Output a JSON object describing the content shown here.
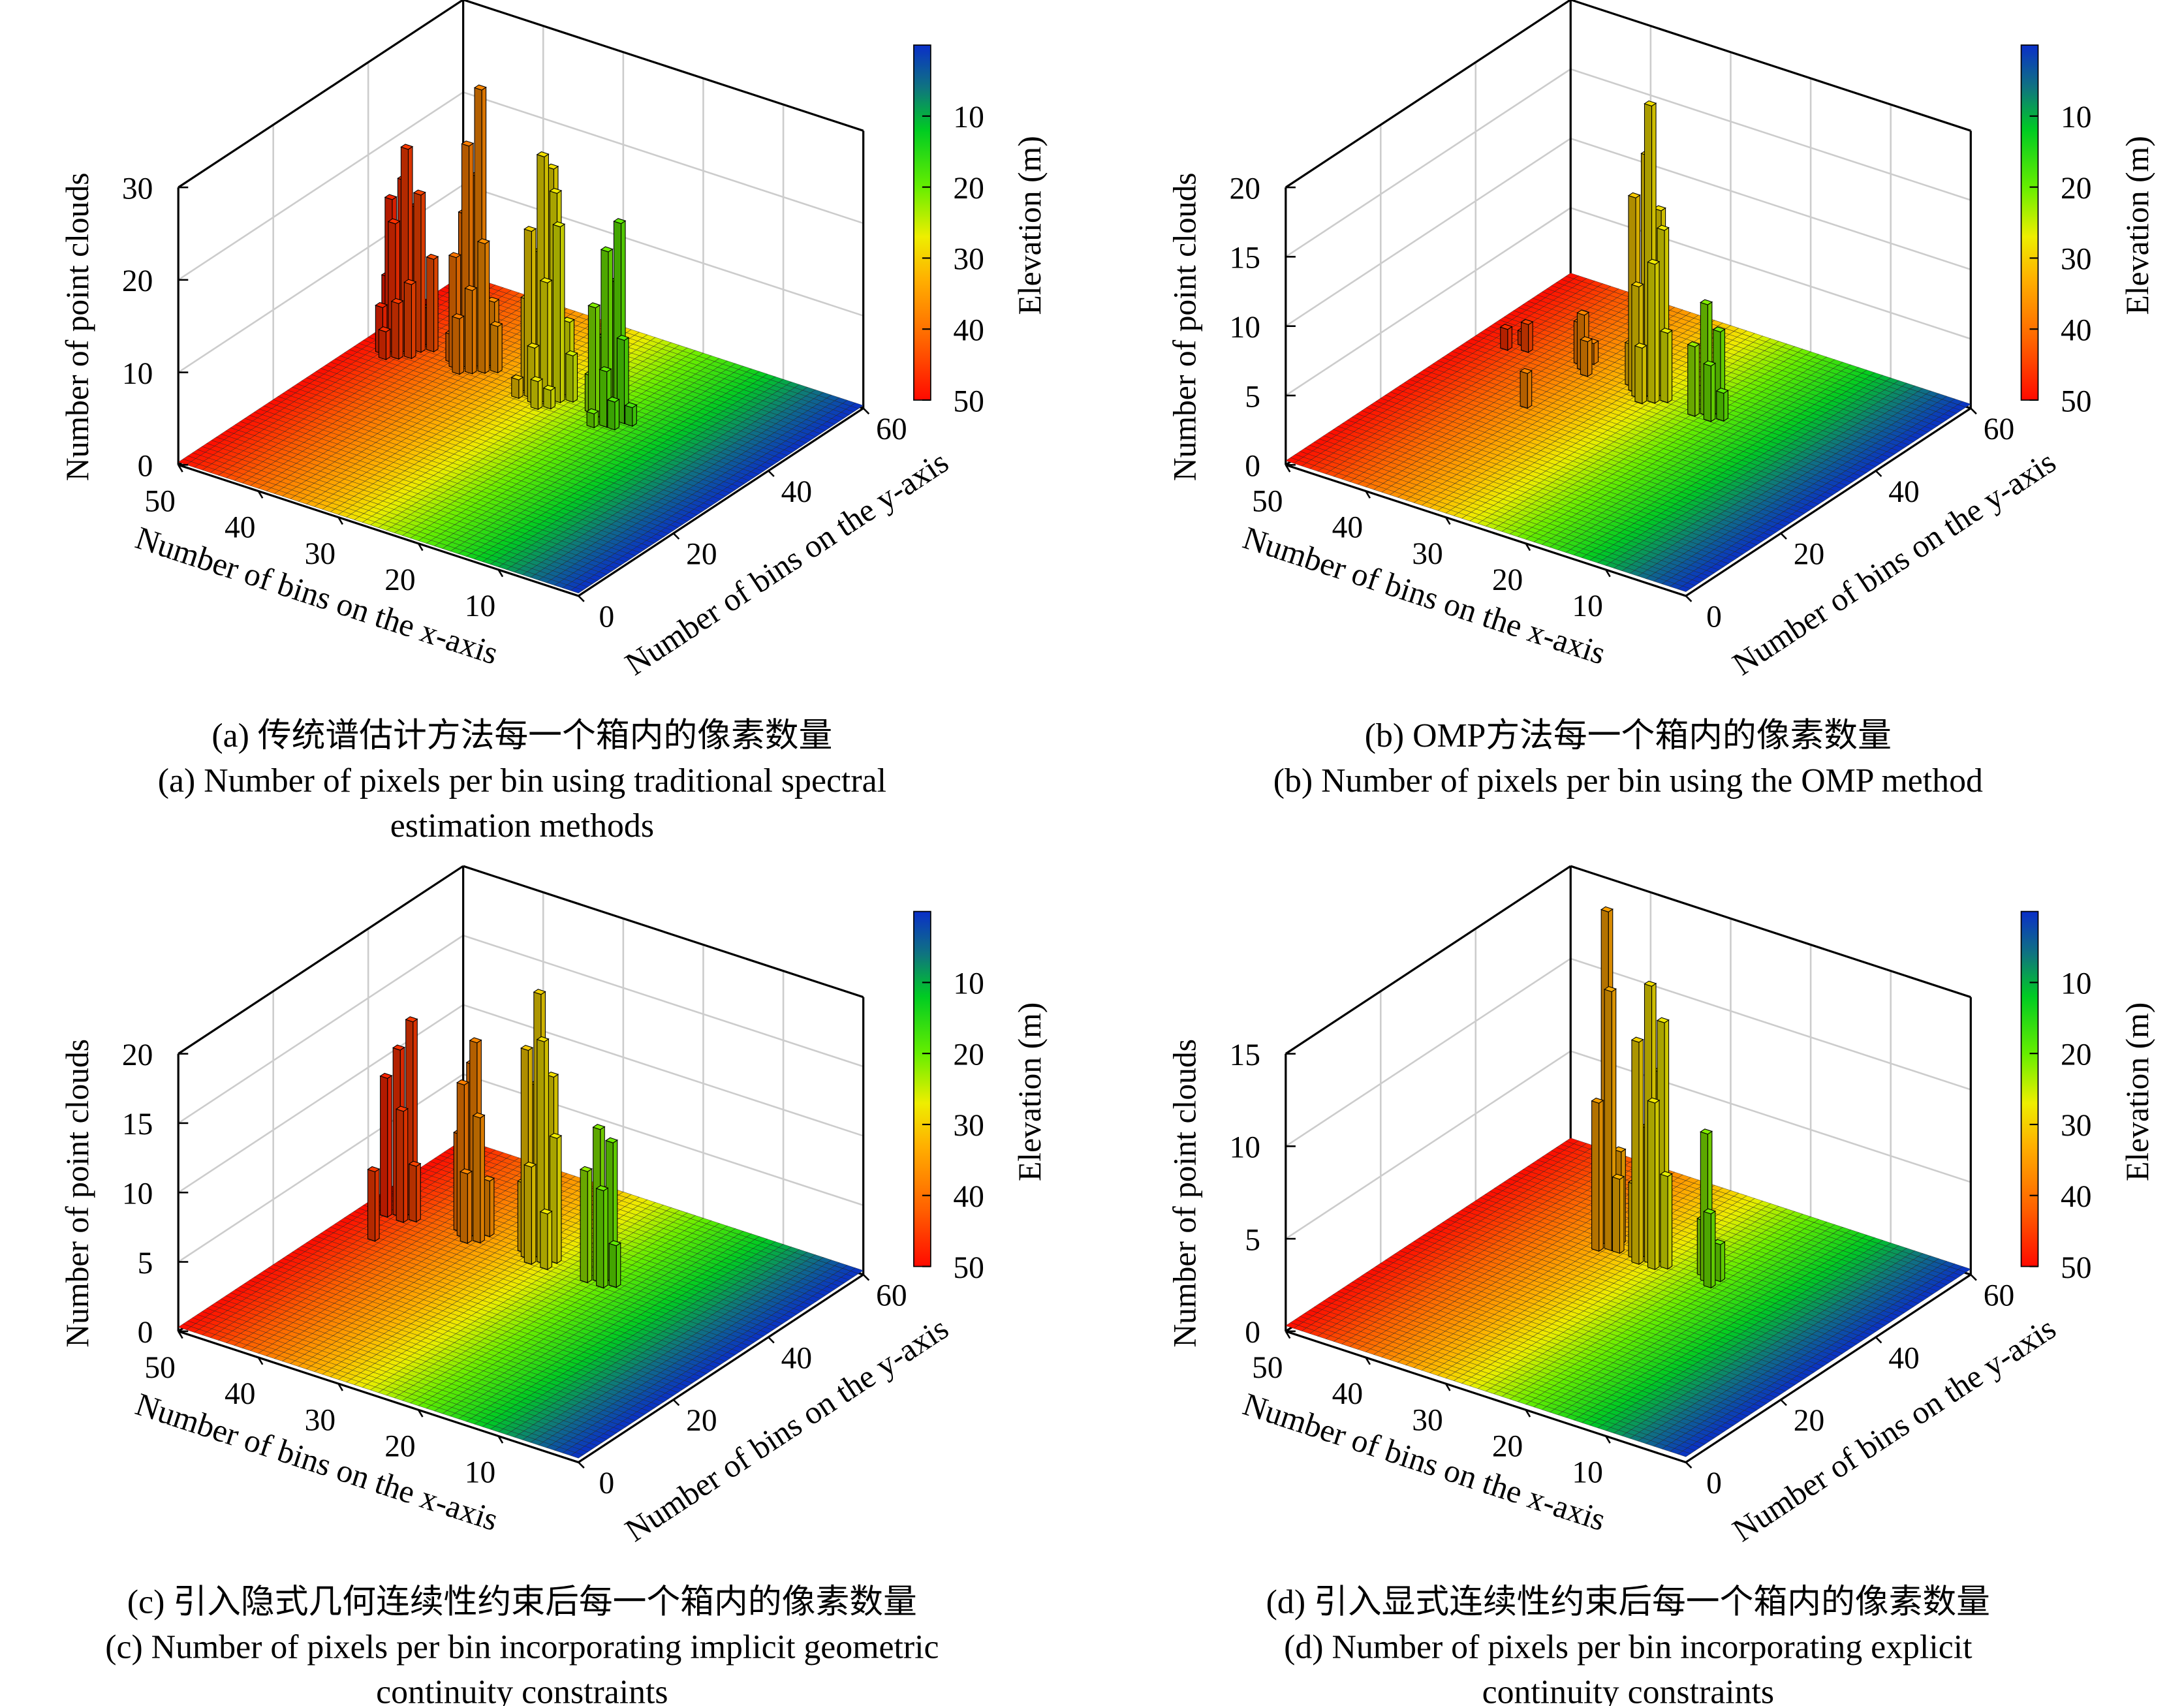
{
  "colormap": {
    "range": [
      0,
      50
    ],
    "stops": [
      {
        "v": 0,
        "color": "#0a2fc8"
      },
      {
        "v": 6,
        "color": "#0f7480"
      },
      {
        "v": 12,
        "color": "#00cc22"
      },
      {
        "v": 20,
        "color": "#66ee00"
      },
      {
        "v": 27,
        "color": "#eeee00"
      },
      {
        "v": 33,
        "color": "#ffb000"
      },
      {
        "v": 42,
        "color": "#ff6000"
      },
      {
        "v": 50,
        "color": "#ff0a00"
      }
    ]
  },
  "chart_data": [
    {
      "panel": "a",
      "type": "bar3d",
      "xlabel": "Number of bins on the x-axis",
      "ylabel": "Number of bins on the y-axis",
      "zlabel": "Number of point clouds",
      "xlim": [
        0,
        50
      ],
      "ylim": [
        0,
        60
      ],
      "zlim": [
        0,
        30
      ],
      "xticks": [
        "50",
        "40",
        "30",
        "20",
        "10"
      ],
      "yticks": [
        "0",
        "20",
        "40",
        "60"
      ],
      "zticks": [
        "0",
        "10",
        "20",
        "30"
      ],
      "grid": true,
      "colorbar": {
        "label": "Elevation (m)",
        "ticks": [
          "10",
          "20",
          "30",
          "40",
          "50"
        ],
        "placement": "right"
      },
      "caption": [
        "(a) 传统谱估计方法每一个箱内的像素数量",
        "(a) Number of pixels per bin using traditional spectral",
        "estimation methods"
      ],
      "bars": [
        [
          47,
          40,
          16
        ],
        [
          46,
          41,
          18
        ],
        [
          45,
          40,
          22
        ],
        [
          46,
          39,
          14
        ],
        [
          47,
          42,
          12
        ],
        [
          45,
          42,
          15
        ],
        [
          44,
          41,
          17
        ],
        [
          46,
          43,
          9
        ],
        [
          44,
          39,
          8
        ],
        [
          45,
          38,
          6
        ],
        [
          47,
          38,
          5
        ],
        [
          48,
          41,
          7
        ],
        [
          43,
          42,
          10
        ],
        [
          44,
          43,
          4
        ],
        [
          46,
          37,
          3
        ],
        [
          38,
          41,
          24
        ],
        [
          37,
          42,
          30
        ],
        [
          38,
          43,
          20
        ],
        [
          39,
          40,
          12
        ],
        [
          36,
          41,
          14
        ],
        [
          37,
          40,
          9
        ],
        [
          38,
          39,
          6
        ],
        [
          36,
          43,
          7
        ],
        [
          39,
          42,
          16
        ],
        [
          35,
          42,
          5
        ],
        [
          37,
          44,
          4
        ],
        [
          40,
          41,
          3
        ],
        [
          28,
          40,
          26
        ],
        [
          27,
          41,
          22
        ],
        [
          29,
          39,
          18
        ],
        [
          28,
          42,
          24
        ],
        [
          26,
          40,
          19
        ],
        [
          27,
          39,
          13
        ],
        [
          29,
          41,
          15
        ],
        [
          30,
          40,
          10
        ],
        [
          26,
          42,
          8
        ],
        [
          28,
          38,
          6
        ],
        [
          25,
          41,
          5
        ],
        [
          27,
          37,
          3
        ],
        [
          30,
          38,
          2
        ],
        [
          26,
          38,
          2
        ],
        [
          20,
          40,
          18
        ],
        [
          19,
          41,
          21
        ],
        [
          21,
          39,
          12
        ],
        [
          20,
          42,
          14
        ],
        [
          18,
          40,
          9
        ],
        [
          19,
          38,
          6
        ],
        [
          21,
          41,
          8
        ],
        [
          22,
          40,
          4
        ],
        [
          18,
          38,
          3
        ],
        [
          17,
          40,
          2
        ],
        [
          20,
          37,
          1.5
        ]
      ]
    },
    {
      "panel": "b",
      "type": "bar3d",
      "xlabel": "Number of bins on the x-axis",
      "ylabel": "Number of bins on the y-axis",
      "zlabel": "Number of point clouds",
      "xlim": [
        0,
        50
      ],
      "ylim": [
        0,
        60
      ],
      "zlim": [
        0,
        20
      ],
      "xticks": [
        "50",
        "40",
        "30",
        "20",
        "10"
      ],
      "yticks": [
        "0",
        "20",
        "40",
        "60"
      ],
      "zticks": [
        "0",
        "5",
        "10",
        "15",
        "20"
      ],
      "grid": true,
      "colorbar": {
        "label": "Elevation (m)",
        "ticks": [
          "10",
          "20",
          "30",
          "40",
          "50"
        ],
        "placement": "right"
      },
      "caption": [
        "(b) OMP方法每一个箱内的像素数量",
        "(b) Number of pixels per bin using the OMP method"
      ],
      "bars": [
        [
          46,
          40,
          1.5
        ],
        [
          45,
          42,
          1
        ],
        [
          44,
          41,
          2
        ],
        [
          37,
          41,
          4
        ],
        [
          38,
          42,
          3
        ],
        [
          36,
          40,
          2.5
        ],
        [
          37,
          43,
          1.5
        ],
        [
          37,
          29,
          2.5
        ],
        [
          30,
          40,
          14
        ],
        [
          29,
          41,
          17
        ],
        [
          28,
          40,
          21
        ],
        [
          28,
          42,
          13
        ],
        [
          27,
          39,
          10
        ],
        [
          29,
          39,
          8
        ],
        [
          30,
          42,
          6
        ],
        [
          27,
          41,
          12
        ],
        [
          26,
          40,
          5
        ],
        [
          28,
          38,
          4
        ],
        [
          31,
          41,
          3
        ],
        [
          21,
          40,
          8
        ],
        [
          20,
          41,
          6
        ],
        [
          22,
          39,
          5
        ],
        [
          20,
          39,
          4
        ],
        [
          21,
          42,
          3
        ],
        [
          19,
          40,
          2
        ]
      ]
    },
    {
      "panel": "c",
      "type": "bar3d",
      "xlabel": "Number of bins on the x-axis",
      "ylabel": "Number of bins on the y-axis",
      "zlabel": "Number of point clouds",
      "xlim": [
        0,
        50
      ],
      "ylim": [
        0,
        60
      ],
      "zlim": [
        0,
        20
      ],
      "xticks": [
        "50",
        "40",
        "30",
        "20",
        "10"
      ],
      "yticks": [
        "0",
        "20",
        "40",
        "60"
      ],
      "zticks": [
        "0",
        "5",
        "10",
        "15",
        "20"
      ],
      "grid": true,
      "colorbar": {
        "label": "Elevation (m)",
        "ticks": [
          "10",
          "20",
          "30",
          "40",
          "50"
        ],
        "placement": "right"
      },
      "caption": [
        "(c) 引入隐式几何连续性约束后每一个箱内的像素数量",
        "(c) Number of pixels per bin incorporating implicit geometric",
        "continuity constraints"
      ],
      "bars": [
        [
          46,
          40,
          12
        ],
        [
          45,
          41,
          14
        ],
        [
          47,
          39,
          10
        ],
        [
          45,
          39,
          8
        ],
        [
          46,
          42,
          6
        ],
        [
          44,
          40,
          4
        ],
        [
          45,
          33,
          5
        ],
        [
          38,
          40,
          11
        ],
        [
          37,
          41,
          14
        ],
        [
          38,
          42,
          12
        ],
        [
          36,
          40,
          9
        ],
        [
          39,
          41,
          7
        ],
        [
          37,
          39,
          5
        ],
        [
          36,
          42,
          4
        ],
        [
          30,
          40,
          15
        ],
        [
          29,
          41,
          19
        ],
        [
          28,
          40,
          16
        ],
        [
          30,
          42,
          12
        ],
        [
          28,
          42,
          13
        ],
        [
          27,
          41,
          9
        ],
        [
          29,
          39,
          7
        ],
        [
          31,
          41,
          5
        ],
        [
          27,
          39,
          4
        ],
        [
          21,
          40,
          11
        ],
        [
          20,
          41,
          10
        ],
        [
          22,
          39,
          8
        ],
        [
          20,
          39,
          7
        ],
        [
          21,
          42,
          5
        ],
        [
          19,
          40,
          3
        ]
      ]
    },
    {
      "panel": "d",
      "type": "bar3d",
      "xlabel": "Number of bins on the x-axis",
      "ylabel": "Number of bins on the y-axis",
      "zlabel": "Number of point clouds",
      "xlim": [
        0,
        50
      ],
      "ylim": [
        0,
        60
      ],
      "zlim": [
        0,
        15
      ],
      "xticks": [
        "50",
        "40",
        "30",
        "20",
        "10"
      ],
      "yticks": [
        "0",
        "20",
        "40",
        "60"
      ],
      "zticks": [
        "0",
        "5",
        "10",
        "15"
      ],
      "grid": true,
      "colorbar": {
        "label": "Elevation (m)",
        "ticks": [
          "10",
          "20",
          "30",
          "40",
          "50"
        ],
        "placement": "right"
      },
      "caption": [
        "(d) 引入显式连续性约束后每一个箱内的像素数量",
        "(d) Number of pixels per bin incorporating explicit",
        "continuity constraints"
      ],
      "bars": [
        [
          34,
          41,
          18
        ],
        [
          33,
          40,
          14
        ],
        [
          34,
          39,
          8
        ],
        [
          35,
          41,
          6
        ],
        [
          33,
          42,
          5
        ],
        [
          32,
          40,
          4
        ],
        [
          28,
          40,
          15
        ],
        [
          27,
          41,
          13
        ],
        [
          29,
          39,
          12
        ],
        [
          28,
          42,
          10
        ],
        [
          27,
          39,
          9
        ],
        [
          29,
          41,
          7
        ],
        [
          26,
          40,
          5
        ],
        [
          30,
          40,
          4
        ],
        [
          21,
          40,
          8
        ],
        [
          20,
          39,
          4
        ],
        [
          22,
          41,
          3
        ],
        [
          20,
          41,
          2
        ]
      ]
    }
  ]
}
